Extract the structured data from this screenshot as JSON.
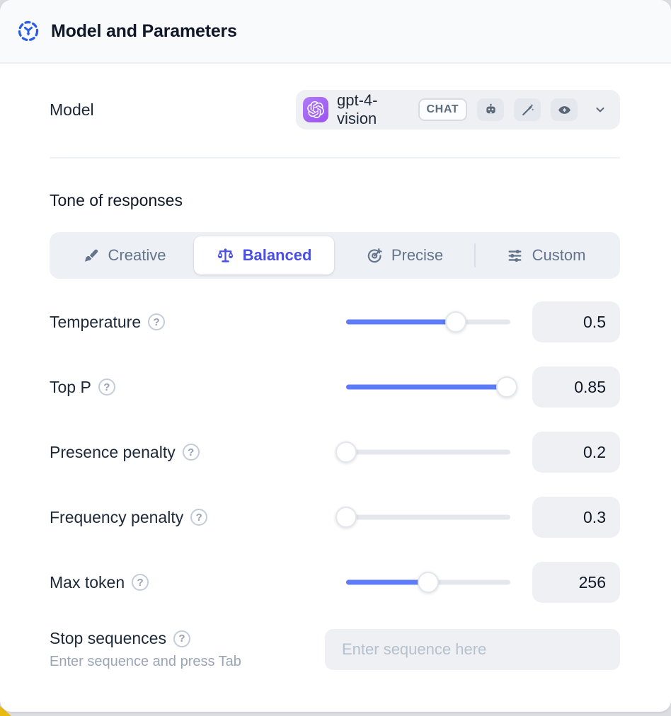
{
  "window": {
    "title": "Model and Parameters",
    "header_icon": "model-hub-icon"
  },
  "model_row": {
    "label": "Model",
    "selected_model": "gpt-4-vision",
    "provider_icon": "openai-logo",
    "badge": "CHAT",
    "capability_icons": [
      "robot-icon",
      "magic-wand-icon",
      "vision-eye-icon"
    ],
    "chevron_icon": "chevron-down-icon"
  },
  "tone": {
    "heading": "Tone of responses",
    "options": [
      {
        "label": "Creative",
        "icon": "paintbrush-icon",
        "selected": false
      },
      {
        "label": "Balanced",
        "icon": "balance-scale-icon",
        "selected": true
      },
      {
        "label": "Precise",
        "icon": "target-arrow-icon",
        "selected": false
      },
      {
        "label": "Custom",
        "icon": "sliders-icon",
        "selected": false
      }
    ]
  },
  "parameters": [
    {
      "label": "Temperature",
      "value": "0.5",
      "slider_percent": 67
    },
    {
      "label": "Top P",
      "value": "0.85",
      "slider_percent": 98
    },
    {
      "label": "Presence penalty",
      "value": "0.2",
      "slider_percent": 0
    },
    {
      "label": "Frequency penalty",
      "value": "0.3",
      "slider_percent": 0
    },
    {
      "label": "Max token",
      "value": "256",
      "slider_percent": 50
    }
  ],
  "stop_sequences": {
    "label": "Stop sequences",
    "hint": "Enter sequence and press Tab",
    "placeholder": "Enter sequence here"
  },
  "glyphs": {
    "help": "?"
  },
  "colors": {
    "slider_accent": "#5C7CFA",
    "selected_tone_indigo": "#4B4FE2",
    "header_icon_blue": "#2B5CE6",
    "provider_purple": "#9A52EF",
    "control_bg": "#EEF0F4",
    "header_bg": "#F8FAFC",
    "icon_slate": "#5B6776"
  }
}
